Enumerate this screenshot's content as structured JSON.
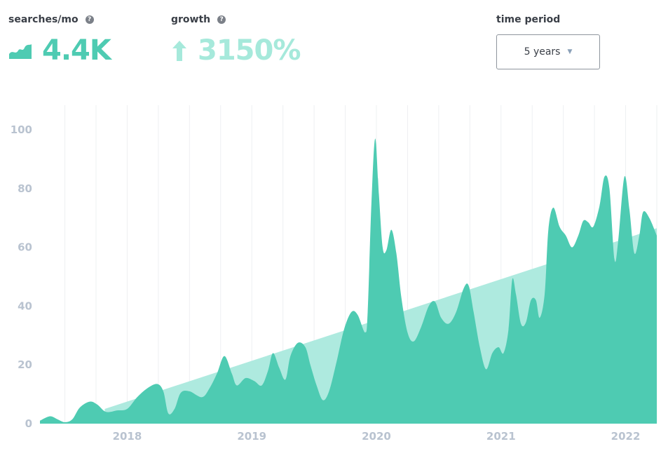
{
  "metrics": {
    "searches": {
      "label": "searches/mo",
      "value": "4.4K",
      "help": "?"
    },
    "growth": {
      "label": "growth",
      "value": "3150%",
      "help": "?"
    },
    "period": {
      "label": "time period",
      "selected": "5 years"
    }
  },
  "icons": {
    "searches_icon": "wave-chart-icon",
    "growth_icon": "arrow-up-icon",
    "caret_icon": "triangle-down-icon",
    "help_icon": "question-circle-icon"
  },
  "colors": {
    "area": "#4ecbb2",
    "trend": "#aeeadf",
    "growth": "#a6e9db",
    "tick": "#b9c3d0",
    "grid": "#eef0f2"
  },
  "chart_data": {
    "type": "area",
    "title": "",
    "xlabel": "",
    "ylabel": "",
    "ylim": [
      0,
      100
    ],
    "yticks": [
      0,
      20,
      40,
      60,
      80,
      100
    ],
    "xticks": [
      "2018",
      "2019",
      "2020",
      "2021",
      "2022"
    ],
    "xlim": [
      2017.3,
      2022.25
    ],
    "grid": true,
    "series": [
      {
        "values": [
          [
            2017.3,
            1
          ],
          [
            2017.38,
            2.5
          ],
          [
            2017.44,
            1.5
          ],
          [
            2017.5,
            0.5
          ],
          [
            2017.56,
            1.5
          ],
          [
            2017.62,
            5.5
          ],
          [
            2017.7,
            7.5
          ],
          [
            2017.76,
            6.5
          ],
          [
            2017.83,
            4
          ],
          [
            2017.92,
            4.5
          ],
          [
            2018.0,
            5
          ],
          [
            2018.08,
            9
          ],
          [
            2018.16,
            12
          ],
          [
            2018.24,
            13.5
          ],
          [
            2018.29,
            11
          ],
          [
            2018.33,
            3.5
          ],
          [
            2018.38,
            5
          ],
          [
            2018.43,
            10.5
          ],
          [
            2018.5,
            11
          ],
          [
            2018.6,
            9
          ],
          [
            2018.66,
            12
          ],
          [
            2018.72,
            17
          ],
          [
            2018.78,
            23
          ],
          [
            2018.84,
            17
          ],
          [
            2018.88,
            13
          ],
          [
            2018.95,
            15.5
          ],
          [
            2019.02,
            14.5
          ],
          [
            2019.08,
            13
          ],
          [
            2019.13,
            18
          ],
          [
            2019.17,
            24
          ],
          [
            2019.22,
            19
          ],
          [
            2019.27,
            15
          ],
          [
            2019.31,
            23
          ],
          [
            2019.37,
            27.5
          ],
          [
            2019.43,
            26
          ],
          [
            2019.47,
            20
          ],
          [
            2019.52,
            13
          ],
          [
            2019.57,
            8
          ],
          [
            2019.62,
            11
          ],
          [
            2019.68,
            21
          ],
          [
            2019.74,
            32
          ],
          [
            2019.8,
            38
          ],
          [
            2019.85,
            37
          ],
          [
            2019.91,
            31
          ],
          [
            2019.93,
            38
          ],
          [
            2019.96,
            75
          ],
          [
            2019.99,
            97
          ],
          [
            2020.02,
            78
          ],
          [
            2020.05,
            60
          ],
          [
            2020.08,
            59
          ],
          [
            2020.12,
            66
          ],
          [
            2020.16,
            58
          ],
          [
            2020.2,
            43
          ],
          [
            2020.25,
            31
          ],
          [
            2020.3,
            28
          ],
          [
            2020.36,
            33
          ],
          [
            2020.42,
            40
          ],
          [
            2020.47,
            41.5
          ],
          [
            2020.52,
            36
          ],
          [
            2020.58,
            34
          ],
          [
            2020.64,
            38
          ],
          [
            2020.7,
            46
          ],
          [
            2020.74,
            47
          ],
          [
            2020.78,
            38
          ],
          [
            2020.83,
            26
          ],
          [
            2020.88,
            18.5
          ],
          [
            2020.93,
            24
          ],
          [
            2020.98,
            26
          ],
          [
            2021.02,
            24
          ],
          [
            2021.06,
            32
          ],
          [
            2021.09,
            49
          ],
          [
            2021.12,
            44
          ],
          [
            2021.16,
            34
          ],
          [
            2021.2,
            34.5
          ],
          [
            2021.24,
            42
          ],
          [
            2021.28,
            42
          ],
          [
            2021.31,
            36
          ],
          [
            2021.35,
            44
          ],
          [
            2021.38,
            66
          ],
          [
            2021.42,
            73.5
          ],
          [
            2021.47,
            67
          ],
          [
            2021.52,
            64
          ],
          [
            2021.57,
            60
          ],
          [
            2021.62,
            64
          ],
          [
            2021.66,
            69
          ],
          [
            2021.7,
            68.5
          ],
          [
            2021.74,
            67
          ],
          [
            2021.79,
            74
          ],
          [
            2021.83,
            84
          ],
          [
            2021.87,
            80
          ],
          [
            2021.91,
            56
          ],
          [
            2021.94,
            62
          ],
          [
            2021.99,
            84
          ],
          [
            2022.03,
            73
          ],
          [
            2022.07,
            58
          ],
          [
            2022.11,
            64
          ],
          [
            2022.14,
            72
          ],
          [
            2022.19,
            70
          ],
          [
            2022.25,
            64
          ]
        ]
      },
      {
        "values": [
          [
            2017.82,
            5
          ],
          [
            2022.25,
            66.5
          ]
        ]
      }
    ]
  }
}
